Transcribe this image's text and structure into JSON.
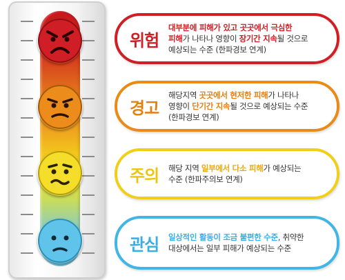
{
  "colors": {
    "danger": "#cf1e25",
    "warning": "#ea8a17",
    "caution": "#f1cf18",
    "interest": "#41b6e6"
  },
  "thermometer": {
    "faces": [
      {
        "icon": "angry-face-icon",
        "color": "#cf1e25"
      },
      {
        "icon": "annoyed-face-icon",
        "color": "#ea8a17"
      },
      {
        "icon": "worried-face-icon",
        "color": "#f5de2a"
      },
      {
        "icon": "sad-face-icon",
        "color": "#5fc3ea"
      }
    ]
  },
  "levels": [
    {
      "label": "위험",
      "line1": {
        "a": "대부분에 피해가 있고 곳곳에서 극심한",
        "b": ""
      },
      "line2": {
        "a": "피해",
        "b": "가 나타나 영향이 ",
        "c": "장기간 지속",
        "d": "될 것으로"
      },
      "line3": "예상되는 수준 (한파경보 연계)"
    },
    {
      "label": "경고",
      "line1": {
        "a": "해당지역 ",
        "b": "곳곳에서 현저한 피해",
        "c": "가 나타나"
      },
      "line2": {
        "a": "영향이 ",
        "b": "단기간 지속",
        "c": "될 것으로 예상되는 수준"
      },
      "line3": "(한파경보 연계)"
    },
    {
      "label": "주의",
      "line1": {
        "a": "해당 지역 ",
        "b": "일부에서 다소 피해",
        "c": "가 예상되는"
      },
      "line2": "수준 (한파주의보 연계)"
    },
    {
      "label": "관심",
      "line1": {
        "a": "일상적인 활동이 조금 불편한 수준",
        "b": ", 취약한"
      },
      "line2": "대상에서는 일부 피해가 예상되는 수준"
    }
  ]
}
